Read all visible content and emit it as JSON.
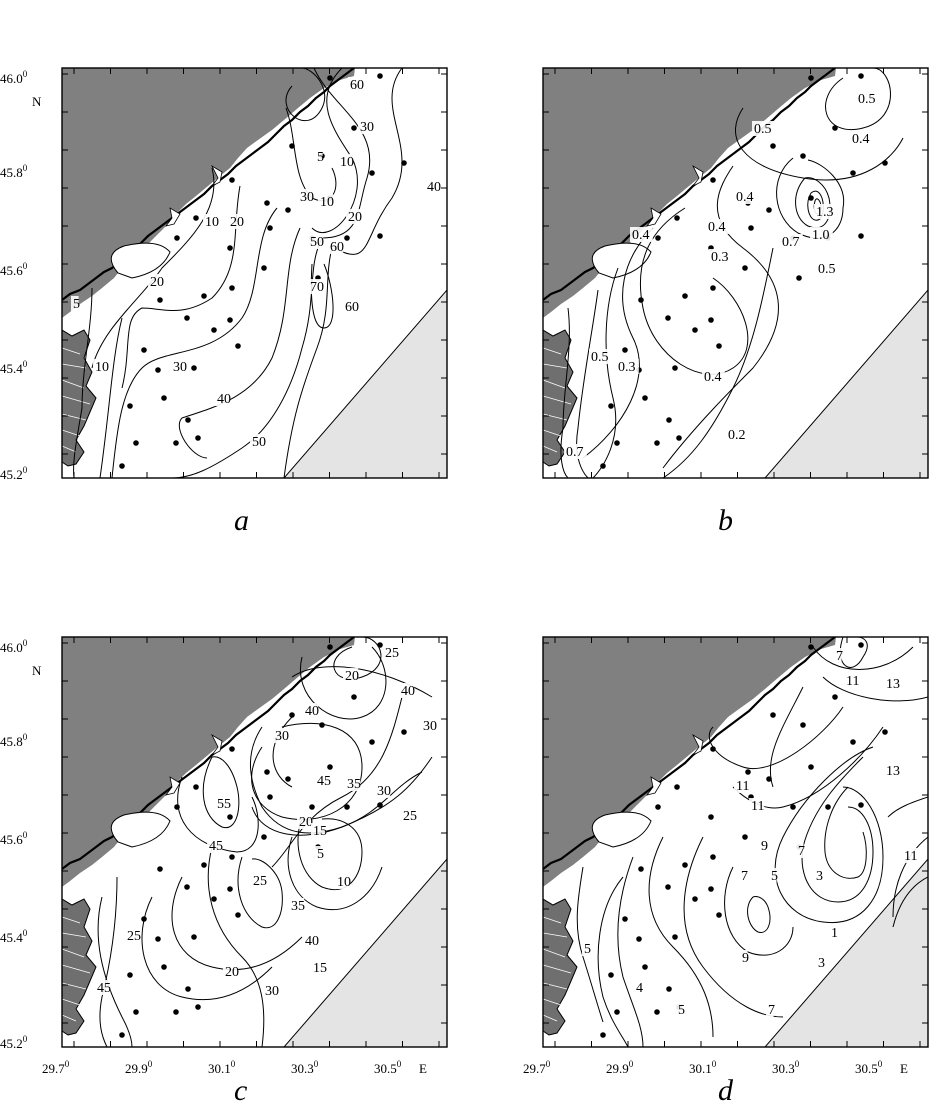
{
  "axes": {
    "north_label": "N",
    "east_label": "E",
    "lat_ticks": [
      {
        "deg": "46.0",
        "sup": "0"
      },
      {
        "deg": "45.8",
        "sup": "0"
      },
      {
        "deg": "45.6",
        "sup": "0"
      },
      {
        "deg": "45.4",
        "sup": "0"
      },
      {
        "deg": "45.2",
        "sup": "0"
      }
    ],
    "lon_ticks": [
      {
        "deg": "29.7",
        "sup": "0"
      },
      {
        "deg": "29.9",
        "sup": "0"
      },
      {
        "deg": "30.1",
        "sup": "0"
      },
      {
        "deg": "30.3",
        "sup": "0"
      },
      {
        "deg": "30.5",
        "sup": "0"
      }
    ]
  },
  "colors": {
    "land": "#808080",
    "shelf": "#e4e4e4",
    "sea": "#ffffff",
    "line": "#000000"
  },
  "panels": [
    {
      "label": "a",
      "contour_labels": [
        "60",
        "30",
        "10",
        "5",
        "10",
        "20",
        "40",
        "10",
        "20",
        "30",
        "50",
        "60",
        "70",
        "60",
        "20",
        "30",
        "40",
        "50",
        "5",
        "10"
      ]
    },
    {
      "label": "b",
      "contour_labels": [
        "0.5",
        "0.5",
        "0.4",
        "0.4",
        "1.3",
        "1.0",
        "0.7",
        "0.5",
        "0.4",
        "0.3",
        "0.4",
        "0.3",
        "0.2",
        "0.4",
        "0.5",
        "0.7"
      ]
    },
    {
      "label": "c",
      "contour_labels": [
        "25",
        "20",
        "40",
        "40",
        "30",
        "30",
        "45",
        "35",
        "30",
        "25",
        "55",
        "45",
        "20",
        "15",
        "5",
        "10",
        "25",
        "35",
        "40",
        "15",
        "20",
        "30",
        "25",
        "45"
      ]
    },
    {
      "label": "d",
      "contour_labels": [
        "7",
        "11",
        "13",
        "11",
        "11",
        "13",
        "9",
        "7",
        "3",
        "5",
        "11",
        "7",
        "1",
        "3",
        "9",
        "7",
        "5",
        "5",
        "4",
        "5",
        "4"
      ]
    }
  ]
}
